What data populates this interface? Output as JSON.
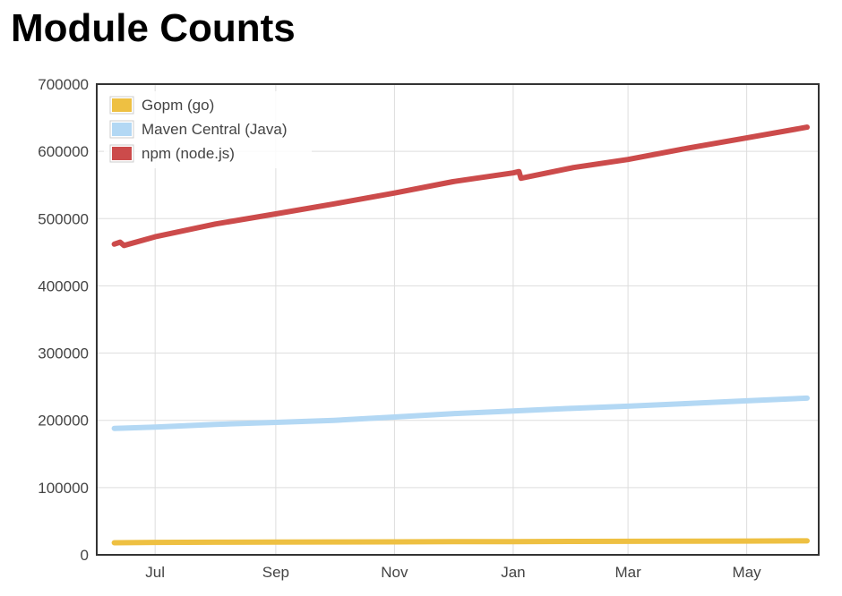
{
  "page_title": "Module Counts",
  "chart_data": {
    "type": "line",
    "title": "Module Counts",
    "xlabel": "",
    "ylabel": "",
    "ylim": [
      0,
      700000
    ],
    "yticks": [
      0,
      100000,
      200000,
      300000,
      400000,
      500000,
      600000,
      700000
    ],
    "xticks": [
      "Jul",
      "Sep",
      "Nov",
      "Jan",
      "Mar",
      "May"
    ],
    "grid": true,
    "legend_position": "top-left",
    "series": [
      {
        "name": "Gopm (go)",
        "color": "#eec042",
        "points": [
          [
            "2014-06-10",
            18000
          ],
          [
            "2014-07-01",
            18500
          ],
          [
            "2014-08-01",
            18700
          ],
          [
            "2014-09-01",
            18900
          ],
          [
            "2014-10-01",
            19100
          ],
          [
            "2014-11-01",
            19300
          ],
          [
            "2014-12-01",
            19500
          ],
          [
            "2015-01-01",
            19700
          ],
          [
            "2015-02-01",
            19900
          ],
          [
            "2015-03-01",
            20100
          ],
          [
            "2015-04-01",
            20300
          ],
          [
            "2015-05-01",
            20500
          ],
          [
            "2015-06-01",
            20700
          ]
        ]
      },
      {
        "name": "Maven Central (Java)",
        "color": "#b3d8f4",
        "points": [
          [
            "2014-06-10",
            188000
          ],
          [
            "2014-07-01",
            190000
          ],
          [
            "2014-08-01",
            194000
          ],
          [
            "2014-09-01",
            197000
          ],
          [
            "2014-10-01",
            200000
          ],
          [
            "2014-11-01",
            205000
          ],
          [
            "2014-12-01",
            210000
          ],
          [
            "2015-01-01",
            214000
          ],
          [
            "2015-02-01",
            218000
          ],
          [
            "2015-03-01",
            221000
          ],
          [
            "2015-04-01",
            225000
          ],
          [
            "2015-05-01",
            229000
          ],
          [
            "2015-06-01",
            233000
          ]
        ]
      },
      {
        "name": "npm (node.js)",
        "color": "#cc4b4b",
        "points": [
          [
            "2014-06-10",
            462000
          ],
          [
            "2014-06-13",
            465000
          ],
          [
            "2014-06-15",
            460000
          ],
          [
            "2014-07-01",
            473000
          ],
          [
            "2014-08-01",
            492000
          ],
          [
            "2014-09-01",
            507000
          ],
          [
            "2014-10-01",
            522000
          ],
          [
            "2014-11-01",
            538000
          ],
          [
            "2014-12-01",
            555000
          ],
          [
            "2015-01-01",
            568000
          ],
          [
            "2015-01-04",
            570000
          ],
          [
            "2015-01-05",
            560000
          ],
          [
            "2015-02-01",
            576000
          ],
          [
            "2015-03-01",
            588000
          ],
          [
            "2015-04-01",
            605000
          ],
          [
            "2015-05-01",
            620000
          ],
          [
            "2015-06-01",
            636000
          ]
        ]
      }
    ]
  }
}
